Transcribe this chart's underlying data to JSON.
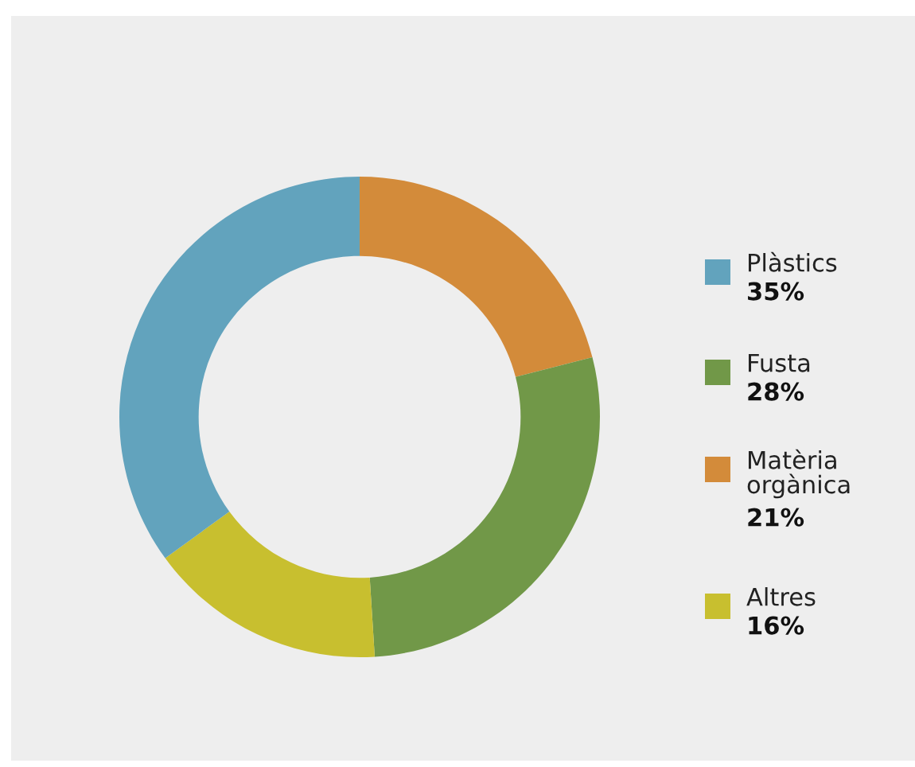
{
  "chart_data": {
    "type": "donut",
    "categories": [
      "Plàstics",
      "Fusta",
      "Matèria\norgànica",
      "Altres"
    ],
    "values": [
      35,
      28,
      21,
      16
    ],
    "colors": [
      "#62a3bd",
      "#719848",
      "#d38b3a",
      "#c8bf2f"
    ],
    "value_labels": [
      "35%",
      "28%",
      "21%",
      "16%"
    ],
    "legend": "right"
  }
}
